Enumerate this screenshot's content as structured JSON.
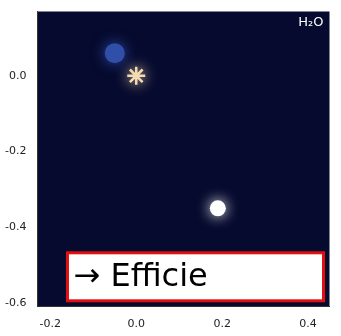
{
  "chart_data": {
    "type": "scatter",
    "title": "H₂O",
    "annotation": "→ Efficie",
    "xlim": [
      -0.23,
      0.45
    ],
    "ylim": [
      -0.61,
      0.17
    ],
    "xticks": [
      {
        "value": -0.2,
        "label": "-0.2"
      },
      {
        "value": 0,
        "label": "0.0"
      },
      {
        "value": 0.2,
        "label": "0.2"
      },
      {
        "value": 0.4,
        "label": "0.4"
      }
    ],
    "yticks": [
      {
        "value": 0,
        "label": "0.0"
      },
      {
        "value": -0.2,
        "label": "-0.2"
      },
      {
        "value": -0.4,
        "label": "-0.4"
      },
      {
        "value": -0.6,
        "label": "-0.6"
      }
    ],
    "grid": false,
    "series": [
      {
        "color": "#2f4fa8",
        "marker": "circle",
        "x": [
          -0.05
        ],
        "values": [
          0.06
        ]
      },
      {
        "color": "#f2dcb0",
        "marker": "star",
        "x": [
          0
        ],
        "values": [
          0
        ]
      },
      {
        "color": "#ffffff",
        "marker": "circle",
        "x": [
          0.19
        ],
        "values": [
          -0.35
        ]
      }
    ]
  }
}
